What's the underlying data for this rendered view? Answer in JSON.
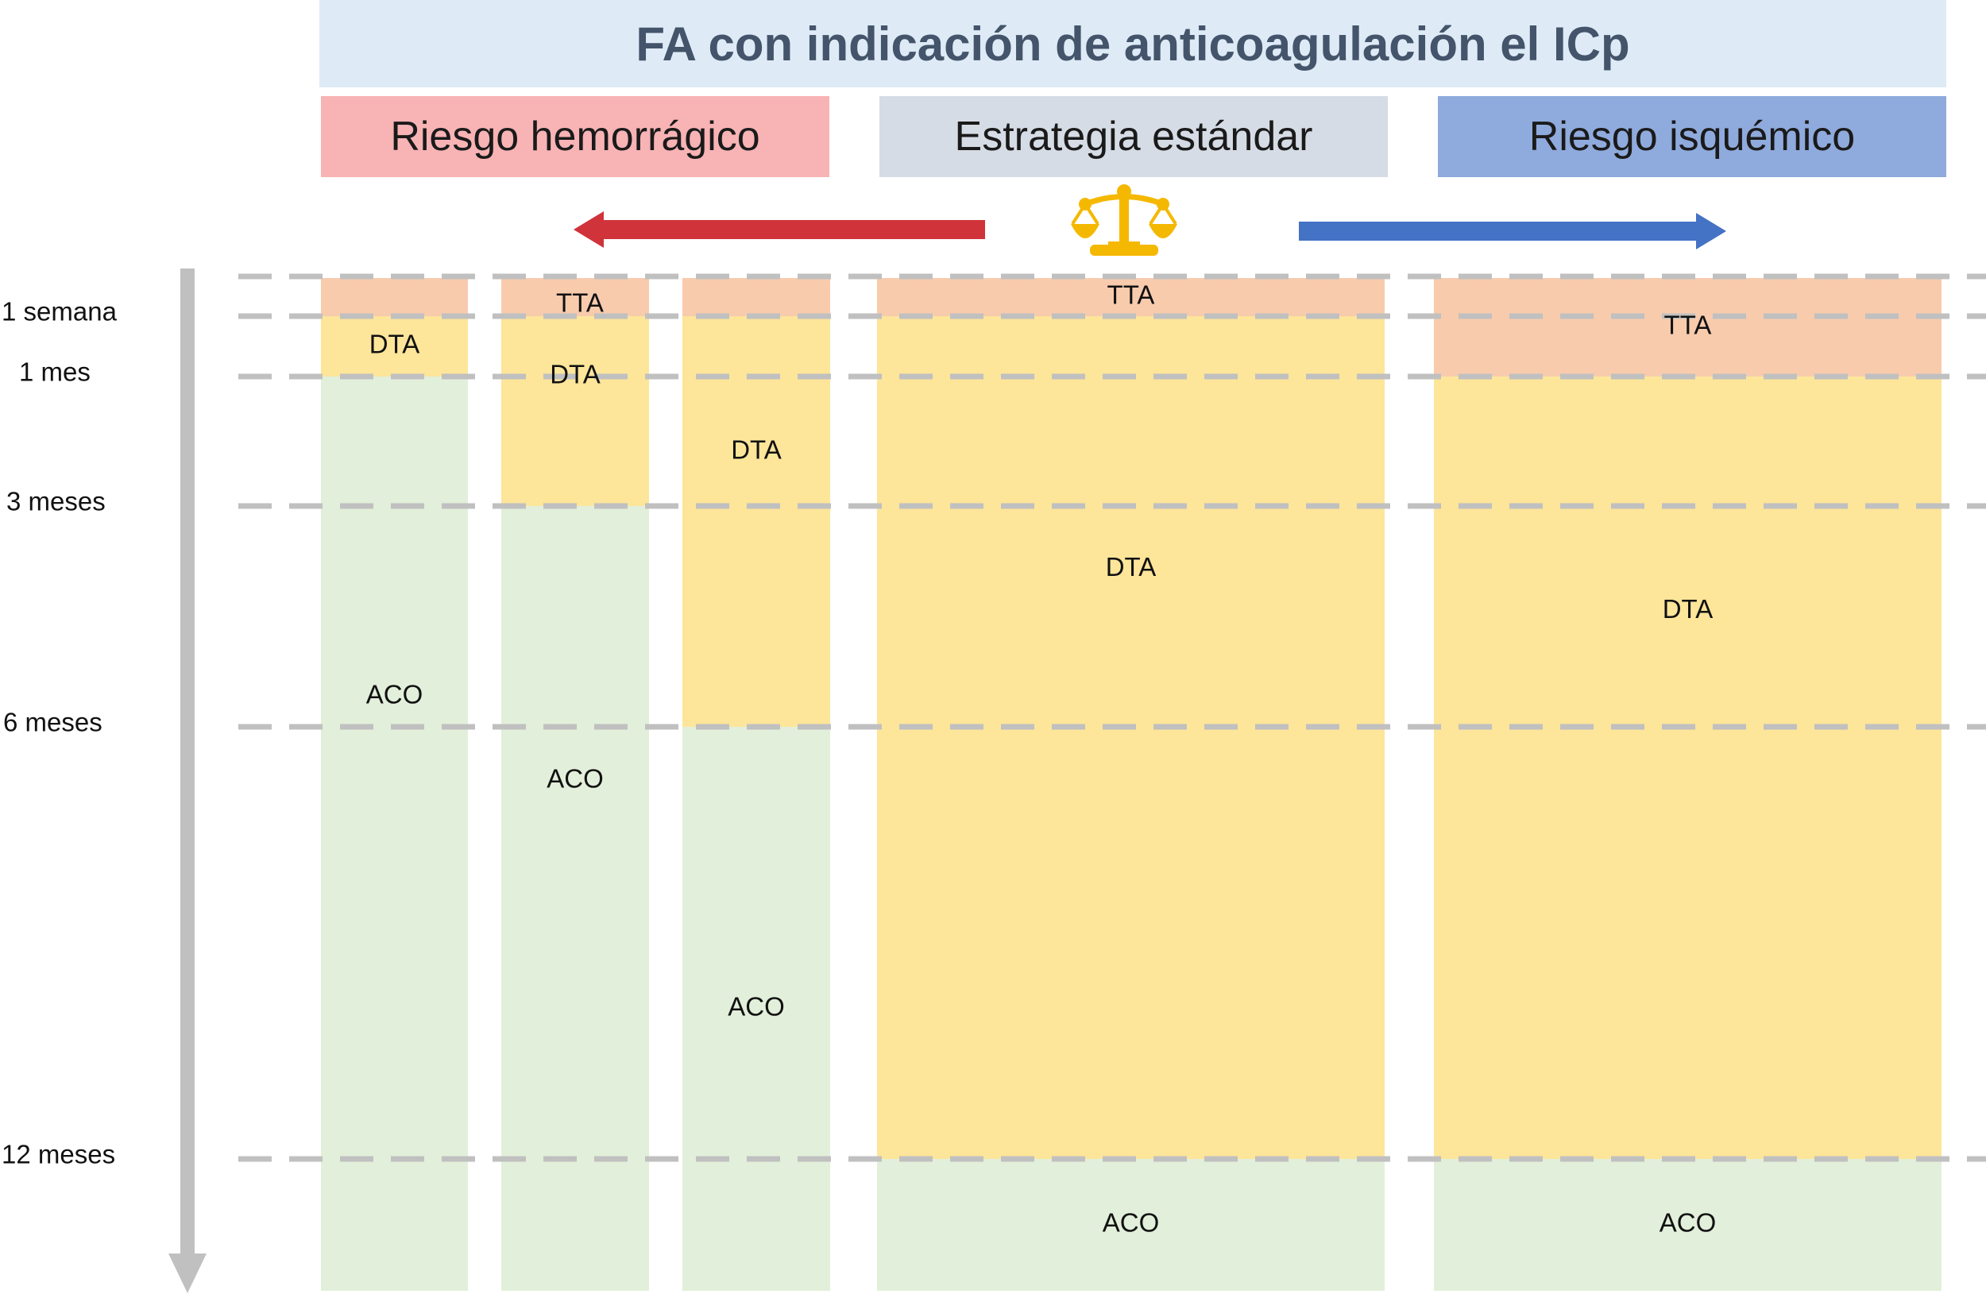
{
  "title": "FA con indicación de anticoagulación el ICp",
  "categories": {
    "bleeding": "Riesgo hemorrágico",
    "standard": "Estrategia estándar",
    "ischemic": "Riesgo isquémico"
  },
  "icon": "balance-scale-icon",
  "colors": {
    "title_bg": "#deebf7",
    "bleeding_bg": "#f8b3b5",
    "standard_bg": "#d6dce5",
    "ischemic_bg": "#8faadc",
    "tta": "#f8cbad",
    "dta": "#fde59a",
    "aco": "#e2efda",
    "arrow_left": "#d0333a",
    "arrow_right": "#4472c4",
    "scale": "#f5b800",
    "timeline": "#c0c0c0"
  },
  "timeline": {
    "ticks": [
      {
        "label": "1 semana",
        "month": 0.25
      },
      {
        "label": "1 mes",
        "month": 1
      },
      {
        "label": "3 meses",
        "month": 3
      },
      {
        "label": "6 meses",
        "month": 6
      },
      {
        "label": "12 meses",
        "month": 12
      }
    ]
  },
  "columns": [
    {
      "name": "bleeding-1",
      "segments": [
        {
          "therapy": "TTA",
          "from": 0,
          "to": 0.25,
          "label": ""
        },
        {
          "therapy": "DTA",
          "from": 0.25,
          "to": 1,
          "label": "DTA"
        },
        {
          "therapy": "ACO",
          "from": 1,
          "to": 14,
          "label": "ACO"
        }
      ]
    },
    {
      "name": "bleeding-2",
      "segments": [
        {
          "therapy": "TTA",
          "from": 0,
          "to": 0.25,
          "label": ""
        },
        {
          "therapy": "DTA",
          "from": 0.25,
          "to": 3,
          "label": "DTA"
        },
        {
          "therapy": "ACO",
          "from": 3,
          "to": 14,
          "label": "ACO"
        }
      ]
    },
    {
      "name": "bleeding-3",
      "segments": [
        {
          "therapy": "TTA",
          "from": 0,
          "to": 0.25,
          "label": ""
        },
        {
          "therapy": "DTA",
          "from": 0.25,
          "to": 6,
          "label": "DTA"
        },
        {
          "therapy": "ACO",
          "from": 6,
          "to": 14,
          "label": "ACO"
        }
      ]
    },
    {
      "name": "standard",
      "segments": [
        {
          "therapy": "TTA",
          "from": 0,
          "to": 0.25,
          "label": "TTA"
        },
        {
          "therapy": "DTA",
          "from": 0.25,
          "to": 12,
          "label": "DTA"
        },
        {
          "therapy": "ACO",
          "from": 12,
          "to": 14,
          "label": "ACO"
        }
      ]
    },
    {
      "name": "ischemic",
      "segments": [
        {
          "therapy": "TTA",
          "from": 0,
          "to": 1,
          "label": "TTA"
        },
        {
          "therapy": "DTA",
          "from": 1,
          "to": 12,
          "label": "DTA"
        },
        {
          "therapy": "ACO",
          "from": 12,
          "to": 14,
          "label": "ACO"
        }
      ]
    }
  ],
  "group_label": {
    "text": "TTA",
    "group": "bleeding"
  }
}
